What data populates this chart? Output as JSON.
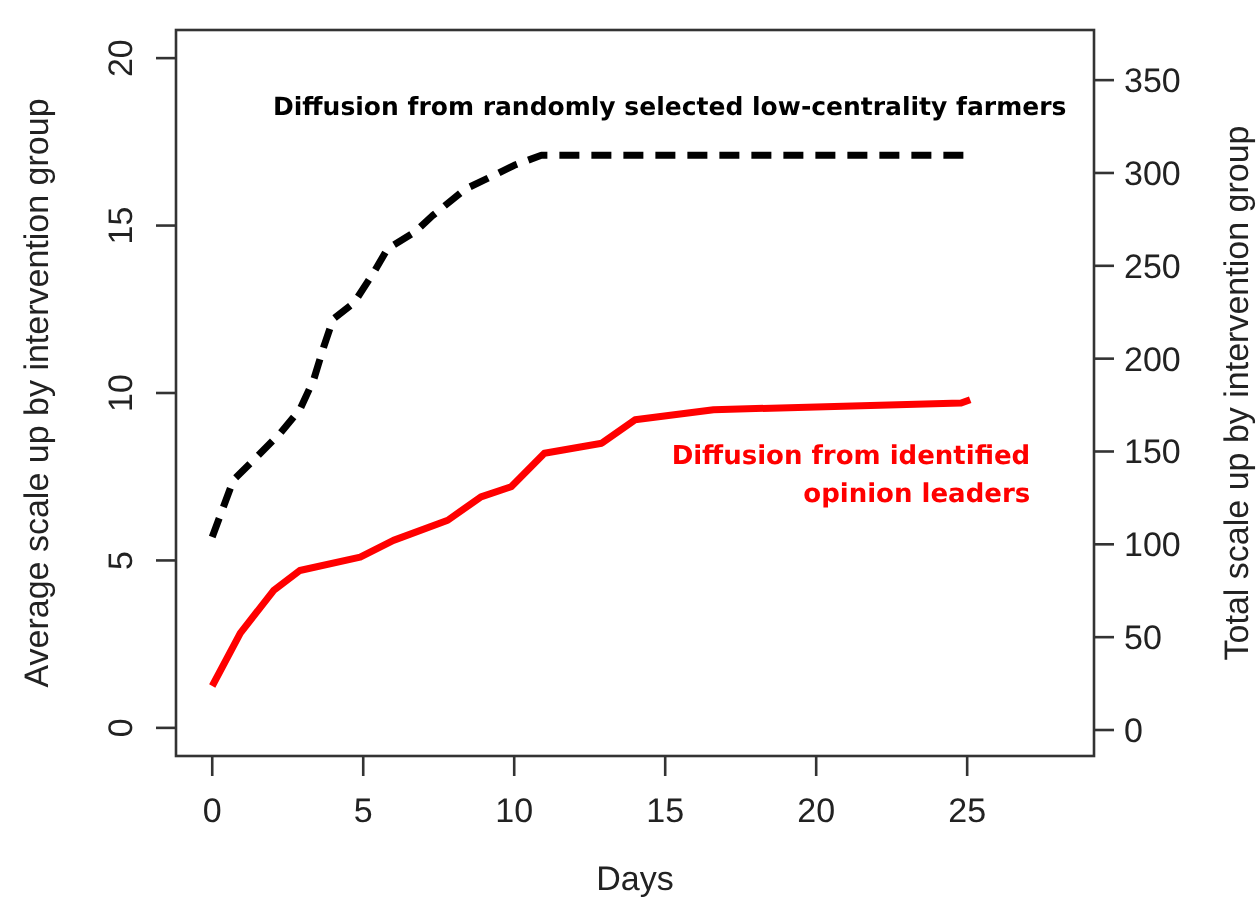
{
  "chart_data": {
    "type": "line",
    "xlabel": "Days",
    "ylabel": "Average scale up by intervention group",
    "y2label": "Total scale up by intervention group",
    "xlim": [
      -1.2,
      29.2
    ],
    "xticks": [
      0,
      5,
      10,
      15,
      20,
      25
    ],
    "ylim": [
      -0.84,
      20.84
    ],
    "yticks": [
      0,
      5,
      10,
      15,
      20
    ],
    "y2lim": [
      -14,
      377
    ],
    "y2ticks": [
      0,
      50,
      100,
      150,
      200,
      250,
      300,
      350
    ],
    "grid": false,
    "series": [
      {
        "name": "Diffusion from randomly selected low-centrality farmers",
        "color": "#000000",
        "line_style": "dashed",
        "x": [
          0,
          0.7,
          1.37,
          2.25,
          2.9,
          3.36,
          3.7,
          4.0,
          4.7,
          5.35,
          5.8,
          6.7,
          7.3,
          8.4,
          9.1,
          10.0,
          10.9,
          12,
          15,
          20,
          25
        ],
        "values": [
          5.7,
          7.4,
          8.0,
          8.8,
          9.5,
          10.4,
          11.4,
          12.2,
          12.7,
          13.6,
          14.3,
          14.8,
          15.3,
          16.1,
          16.4,
          16.8,
          17.1,
          17.1,
          17.1,
          17.1,
          17.1
        ]
      },
      {
        "name": "Diffusion from identified opinion leaders",
        "color": "#ff0000",
        "line_style": "solid",
        "x": [
          0,
          0.93,
          2.03,
          2.9,
          4.9,
          6.0,
          7.8,
          8.9,
          9.9,
          11.0,
          12.9,
          14.0,
          16.6,
          20.6,
          24.8,
          25.1
        ],
        "values": [
          1.25,
          2.83,
          4.1,
          4.7,
          5.1,
          5.6,
          6.2,
          6.9,
          7.2,
          8.2,
          8.5,
          9.2,
          9.5,
          9.6,
          9.7,
          9.8
        ]
      }
    ]
  }
}
